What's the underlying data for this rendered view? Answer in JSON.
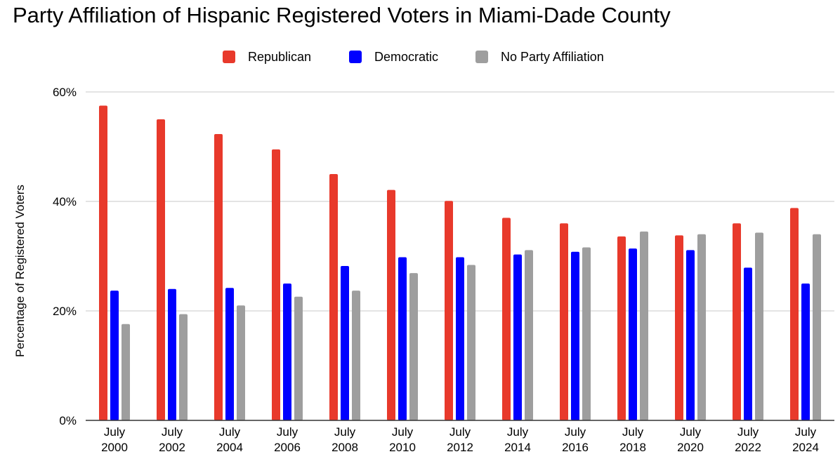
{
  "chart_data": {
    "type": "bar",
    "title": "Party Affiliation of Hispanic Registered Voters in Miami-Dade County",
    "xlabel": "",
    "ylabel": "Percentage of Registered Voters",
    "ylim": [
      0,
      60
    ],
    "yticks": [
      0,
      20,
      40,
      60
    ],
    "ytick_labels": [
      "0%",
      "20%",
      "40%",
      "60%"
    ],
    "grid": true,
    "legend_position": "top-center",
    "categories": [
      [
        "July",
        "2000"
      ],
      [
        "July",
        "2002"
      ],
      [
        "July",
        "2004"
      ],
      [
        "July",
        "2006"
      ],
      [
        "July",
        "2008"
      ],
      [
        "July",
        "2010"
      ],
      [
        "July",
        "2012"
      ],
      [
        "July",
        "2014"
      ],
      [
        "July",
        "2016"
      ],
      [
        "July",
        "2018"
      ],
      [
        "July",
        "2020"
      ],
      [
        "July",
        "2022"
      ],
      [
        "July",
        "2024"
      ]
    ],
    "series": [
      {
        "name": "Republican",
        "color": "#e8392b",
        "values": [
          57.5,
          55.0,
          52.3,
          49.5,
          45.0,
          42.1,
          40.1,
          37.0,
          36.0,
          33.6,
          33.8,
          36.0,
          38.8
        ]
      },
      {
        "name": "Democratic",
        "color": "#0000ff",
        "values": [
          23.7,
          24.0,
          24.2,
          25.0,
          28.2,
          29.8,
          29.8,
          30.3,
          30.8,
          31.4,
          31.1,
          27.9,
          25.0
        ]
      },
      {
        "name": "No Party Affiliation",
        "color": "#9e9e9e",
        "values": [
          17.6,
          19.4,
          21.0,
          22.6,
          23.7,
          26.9,
          28.4,
          31.1,
          31.6,
          34.5,
          34.0,
          34.3,
          34.0
        ]
      }
    ]
  }
}
